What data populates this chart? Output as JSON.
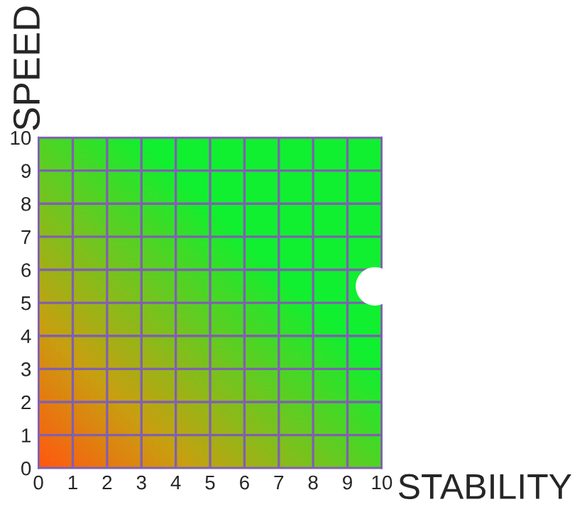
{
  "chart_data": {
    "type": "scatter",
    "xlabel": "STABILITY",
    "ylabel": "SPEED",
    "x": [
      9.8
    ],
    "series": [
      {
        "color": "#ffffff",
        "values": [
          5.5
        ]
      }
    ],
    "xlim": [
      0,
      10
    ],
    "ylim": [
      0,
      10
    ],
    "xticks": [
      0,
      1,
      2,
      3,
      4,
      5,
      6,
      7,
      8,
      9,
      10
    ],
    "yticks": [
      0,
      1,
      2,
      3,
      4,
      5,
      6,
      7,
      8,
      9,
      10
    ],
    "grid": true,
    "marker": "circle"
  }
}
